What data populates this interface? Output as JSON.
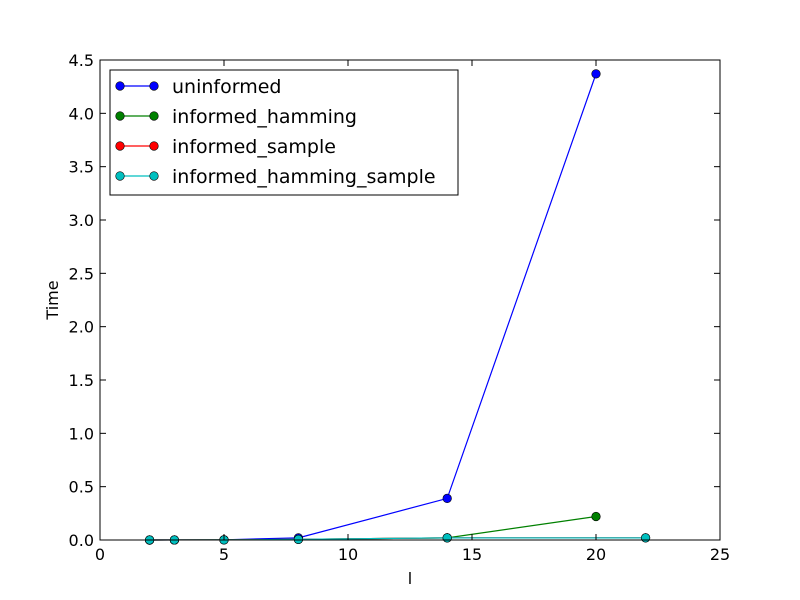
{
  "chart_data": {
    "type": "line",
    "title": "",
    "xlabel": "l",
    "ylabel": "Time",
    "xlim": [
      0,
      25
    ],
    "ylim": [
      0,
      4.5
    ],
    "xticks": [
      0,
      5,
      10,
      15,
      20,
      25
    ],
    "yticks": [
      0.0,
      0.5,
      1.0,
      1.5,
      2.0,
      2.5,
      3.0,
      3.5,
      4.0,
      4.5
    ],
    "xtick_labels": [
      "0",
      "5",
      "10",
      "15",
      "20",
      "25"
    ],
    "ytick_labels": [
      "0.0",
      "0.5",
      "1.0",
      "1.5",
      "2.0",
      "2.5",
      "3.0",
      "3.5",
      "4.0",
      "4.5"
    ],
    "grid": false,
    "legend_position": "top-left",
    "series": [
      {
        "name": "uninformed",
        "color": "#0000ff",
        "x": [
          2,
          3,
          5,
          8,
          14,
          20
        ],
        "y": [
          0.0002,
          0.0005,
          0.002,
          0.02,
          0.39,
          4.37
        ]
      },
      {
        "name": "informed_hamming",
        "color": "#008000",
        "x": [
          2,
          3,
          5,
          8,
          14,
          20
        ],
        "y": [
          0.0002,
          0.0004,
          0.001,
          0.006,
          0.02,
          0.22
        ]
      },
      {
        "name": "informed_sample",
        "color": "#ff0000",
        "x": [
          2,
          3,
          5,
          8,
          14,
          22
        ],
        "y": [
          0.0002,
          0.0004,
          0.001,
          0.006,
          0.02,
          0.02
        ]
      },
      {
        "name": "informed_hamming_sample",
        "color": "#00bfbf",
        "x": [
          2,
          3,
          5,
          8,
          14,
          22
        ],
        "y": [
          0.0002,
          0.0004,
          0.001,
          0.006,
          0.02,
          0.02
        ]
      }
    ]
  }
}
